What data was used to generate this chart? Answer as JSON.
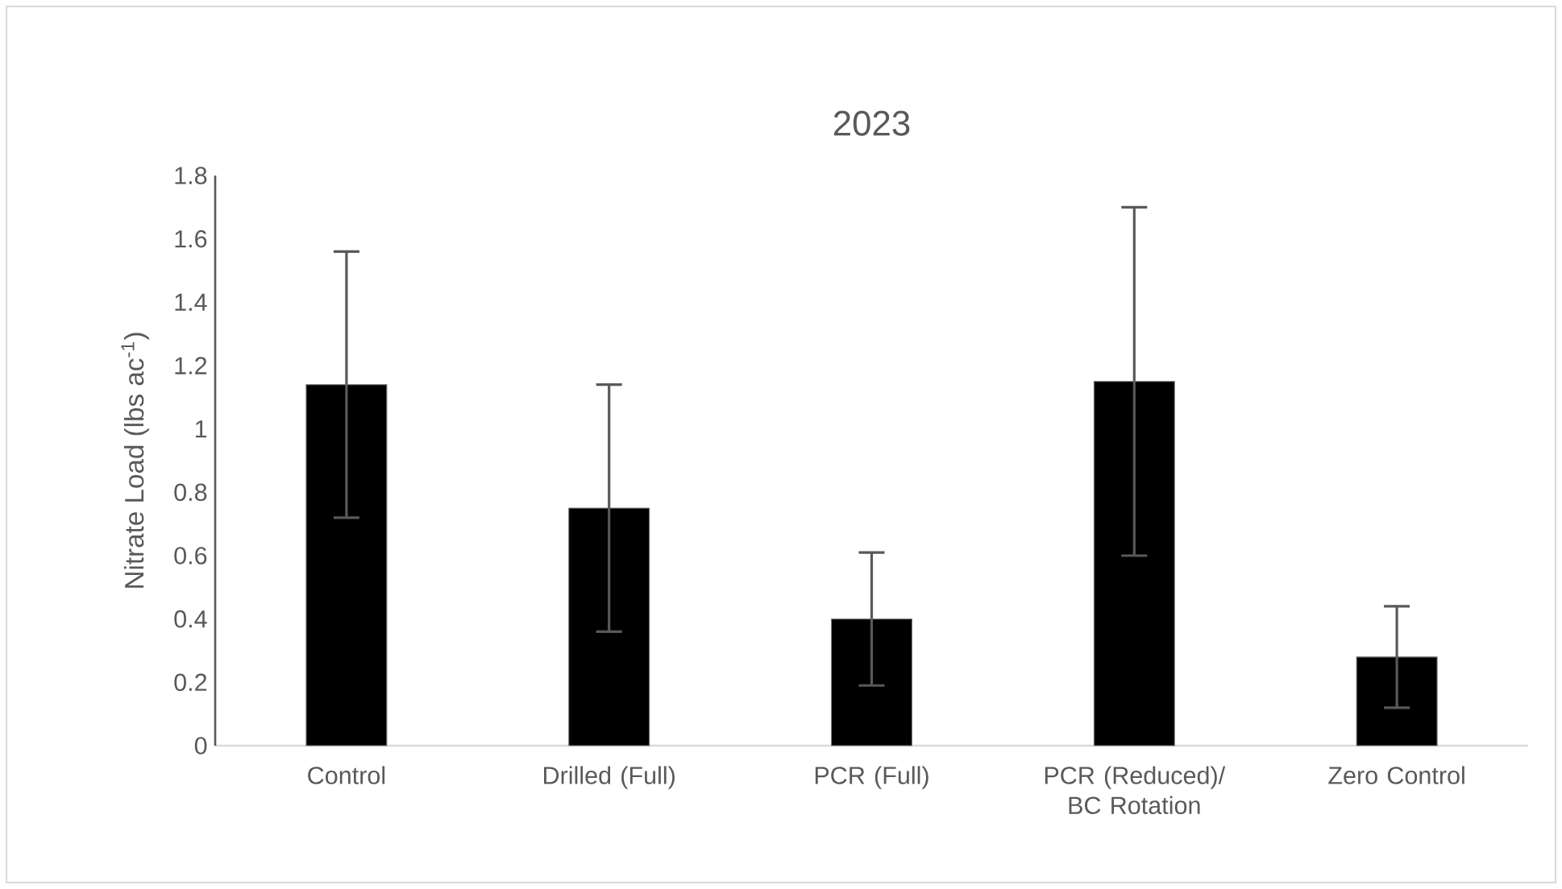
{
  "chart_data": {
    "type": "bar",
    "title": "2023",
    "ylabel": "Nitrate Load (lbs ac$^{-1}$)",
    "categories": [
      "Control",
      "Drilled (Full)",
      "PCR (Full)",
      "PCR (Reduced)/ BC Rotation",
      "Zero Control"
    ],
    "values": [
      1.14,
      0.75,
      0.4,
      1.15,
      0.28
    ],
    "errors": [
      0.42,
      0.39,
      0.21,
      0.55,
      0.16
    ],
    "color": "#000000",
    "ylim": [
      0,
      1.8
    ],
    "yticks": [
      0,
      0.2,
      0.4,
      0.6,
      0.8,
      1,
      1.2,
      1.4,
      1.6,
      1.8
    ],
    "grid": false
  }
}
